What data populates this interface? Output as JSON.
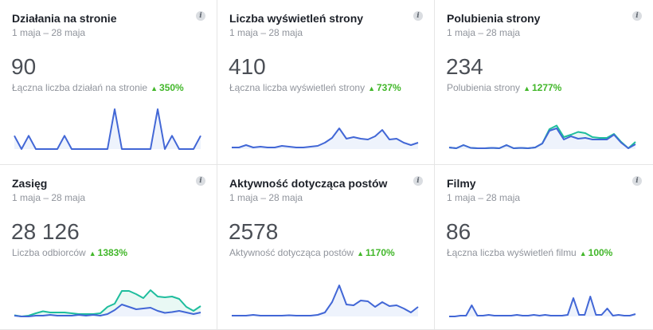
{
  "colors": {
    "blue": "#4267d6",
    "teal": "#1ebd9d",
    "fill": "#eef3fc",
    "fill2": "#e9f8f4",
    "green": "#42b72a"
  },
  "cards": [
    {
      "title": "Działania na stronie",
      "date": "1 maja – 28 maja",
      "value": "90",
      "sub": "Łączna liczba działań na stronie",
      "change": "350%",
      "chart_data": {
        "type": "line",
        "ylim": [
          0,
          3
        ],
        "series": [
          {
            "name": "blue",
            "values": [
              1,
              0,
              1,
              0,
              0,
              0,
              0,
              1,
              0,
              0,
              0,
              0,
              0,
              0,
              3,
              0,
              0,
              0,
              0,
              0,
              3,
              0,
              1,
              0,
              0,
              0,
              1
            ]
          }
        ]
      }
    },
    {
      "title": "Liczba wyświetleń strony",
      "date": "1 maja – 28 maja",
      "value": "410",
      "sub": "Łączna liczba wyświetleń strony",
      "change": "737%",
      "chart_data": {
        "type": "line",
        "ylim": [
          0,
          10
        ],
        "series": [
          {
            "name": "blue",
            "values": [
              0.4,
              0.4,
              1,
              0.4,
              0.6,
              0.4,
              0.4,
              0.8,
              0.6,
              0.4,
              0.4,
              0.6,
              0.8,
              1.6,
              2.8,
              5.2,
              2.6,
              3,
              2.6,
              2.4,
              3.2,
              4.8,
              2.4,
              2.6,
              1.6,
              1,
              1.6
            ]
          }
        ]
      }
    },
    {
      "title": "Polubienia strony",
      "date": "1 maja – 28 maja",
      "value": "234",
      "sub": "Polubienia strony",
      "change": "1277%",
      "chart_data": {
        "type": "line",
        "ylim": [
          0,
          10
        ],
        "series": [
          {
            "name": "blue",
            "values": [
              0.4,
              0.2,
              1,
              0.3,
              0.2,
              0.2,
              0.3,
              0.2,
              1,
              0.2,
              0.3,
              0.2,
              0.4,
              1.4,
              4.6,
              5.2,
              2.4,
              3.2,
              2.6,
              2.8,
              2.4,
              2.4,
              2.4,
              3.6,
              1.6,
              0.2,
              1.2
            ]
          },
          {
            "name": "teal",
            "values": [
              0.4,
              0.2,
              1,
              0.3,
              0.2,
              0.2,
              0.3,
              0.2,
              1,
              0.2,
              0.3,
              0.2,
              0.4,
              1.4,
              5,
              5.9,
              3,
              3.6,
              4.3,
              4,
              3,
              2.8,
              2.8,
              3.8,
              1.8,
              0.2,
              1.8
            ]
          }
        ]
      }
    },
    {
      "title": "Zasięg",
      "date": "1 maja – 28 maja",
      "value": "28 126",
      "sub": "Liczba odbiorców",
      "change": "1383%",
      "chart_data": {
        "type": "line",
        "ylim": [
          0,
          10
        ],
        "series": [
          {
            "name": "blue",
            "values": [
              0.2,
              0,
              0,
              0.2,
              0.2,
              0.4,
              0.2,
              0.2,
              0.2,
              0.4,
              0.2,
              0.4,
              0.2,
              0.6,
              1.6,
              3,
              2.4,
              1.8,
              2,
              2.2,
              1.4,
              0.9,
              1.1,
              1.4,
              1,
              0.6,
              1
            ]
          },
          {
            "name": "teal",
            "values": [
              0.3,
              0,
              0.2,
              0.8,
              1.3,
              1,
              1,
              1,
              0.8,
              0.6,
              0.6,
              0.6,
              0.8,
              2.4,
              3.2,
              6.4,
              6.4,
              5.6,
              4.6,
              6.6,
              5,
              4.8,
              5,
              4.4,
              2.4,
              1.4,
              2.6
            ]
          }
        ]
      }
    },
    {
      "title": "Aktywność dotycząca postów",
      "date": "1 maja – 28 maja",
      "value": "2578",
      "sub": "Aktywność dotycząca postów",
      "change": "1170%",
      "chart_data": {
        "type": "line",
        "ylim": [
          0,
          10
        ],
        "series": [
          {
            "name": "blue",
            "values": [
              0.2,
              0.2,
              0.2,
              0.4,
              0.2,
              0.2,
              0.2,
              0.2,
              0.3,
              0.2,
              0.2,
              0.2,
              0.4,
              1,
              3.6,
              7.8,
              3,
              2.8,
              4,
              3.8,
              2.4,
              3.6,
              2.6,
              2.8,
              2,
              1,
              2.4
            ]
          }
        ]
      }
    },
    {
      "title": "Filmy",
      "date": "1 maja – 28 maja",
      "value": "86",
      "sub": "Łączna liczba wyświetleń filmu",
      "change": "100%",
      "chart_data": {
        "type": "line",
        "ylim": [
          0,
          10
        ],
        "series": [
          {
            "name": "blue",
            "values": [
              0,
              0,
              0.2,
              0.2,
              2.8,
              0.2,
              0.2,
              0.4,
              0.2,
              0.2,
              0.2,
              0.2,
              0.4,
              0.2,
              0.2,
              0.4,
              0.2,
              0.4,
              0.2,
              0.2,
              0.2,
              0.4,
              4.6,
              0.4,
              0.4,
              5,
              0.4,
              0.4,
              2,
              0.2,
              0.4,
              0.2,
              0.2,
              0.6
            ]
          }
        ]
      }
    }
  ]
}
